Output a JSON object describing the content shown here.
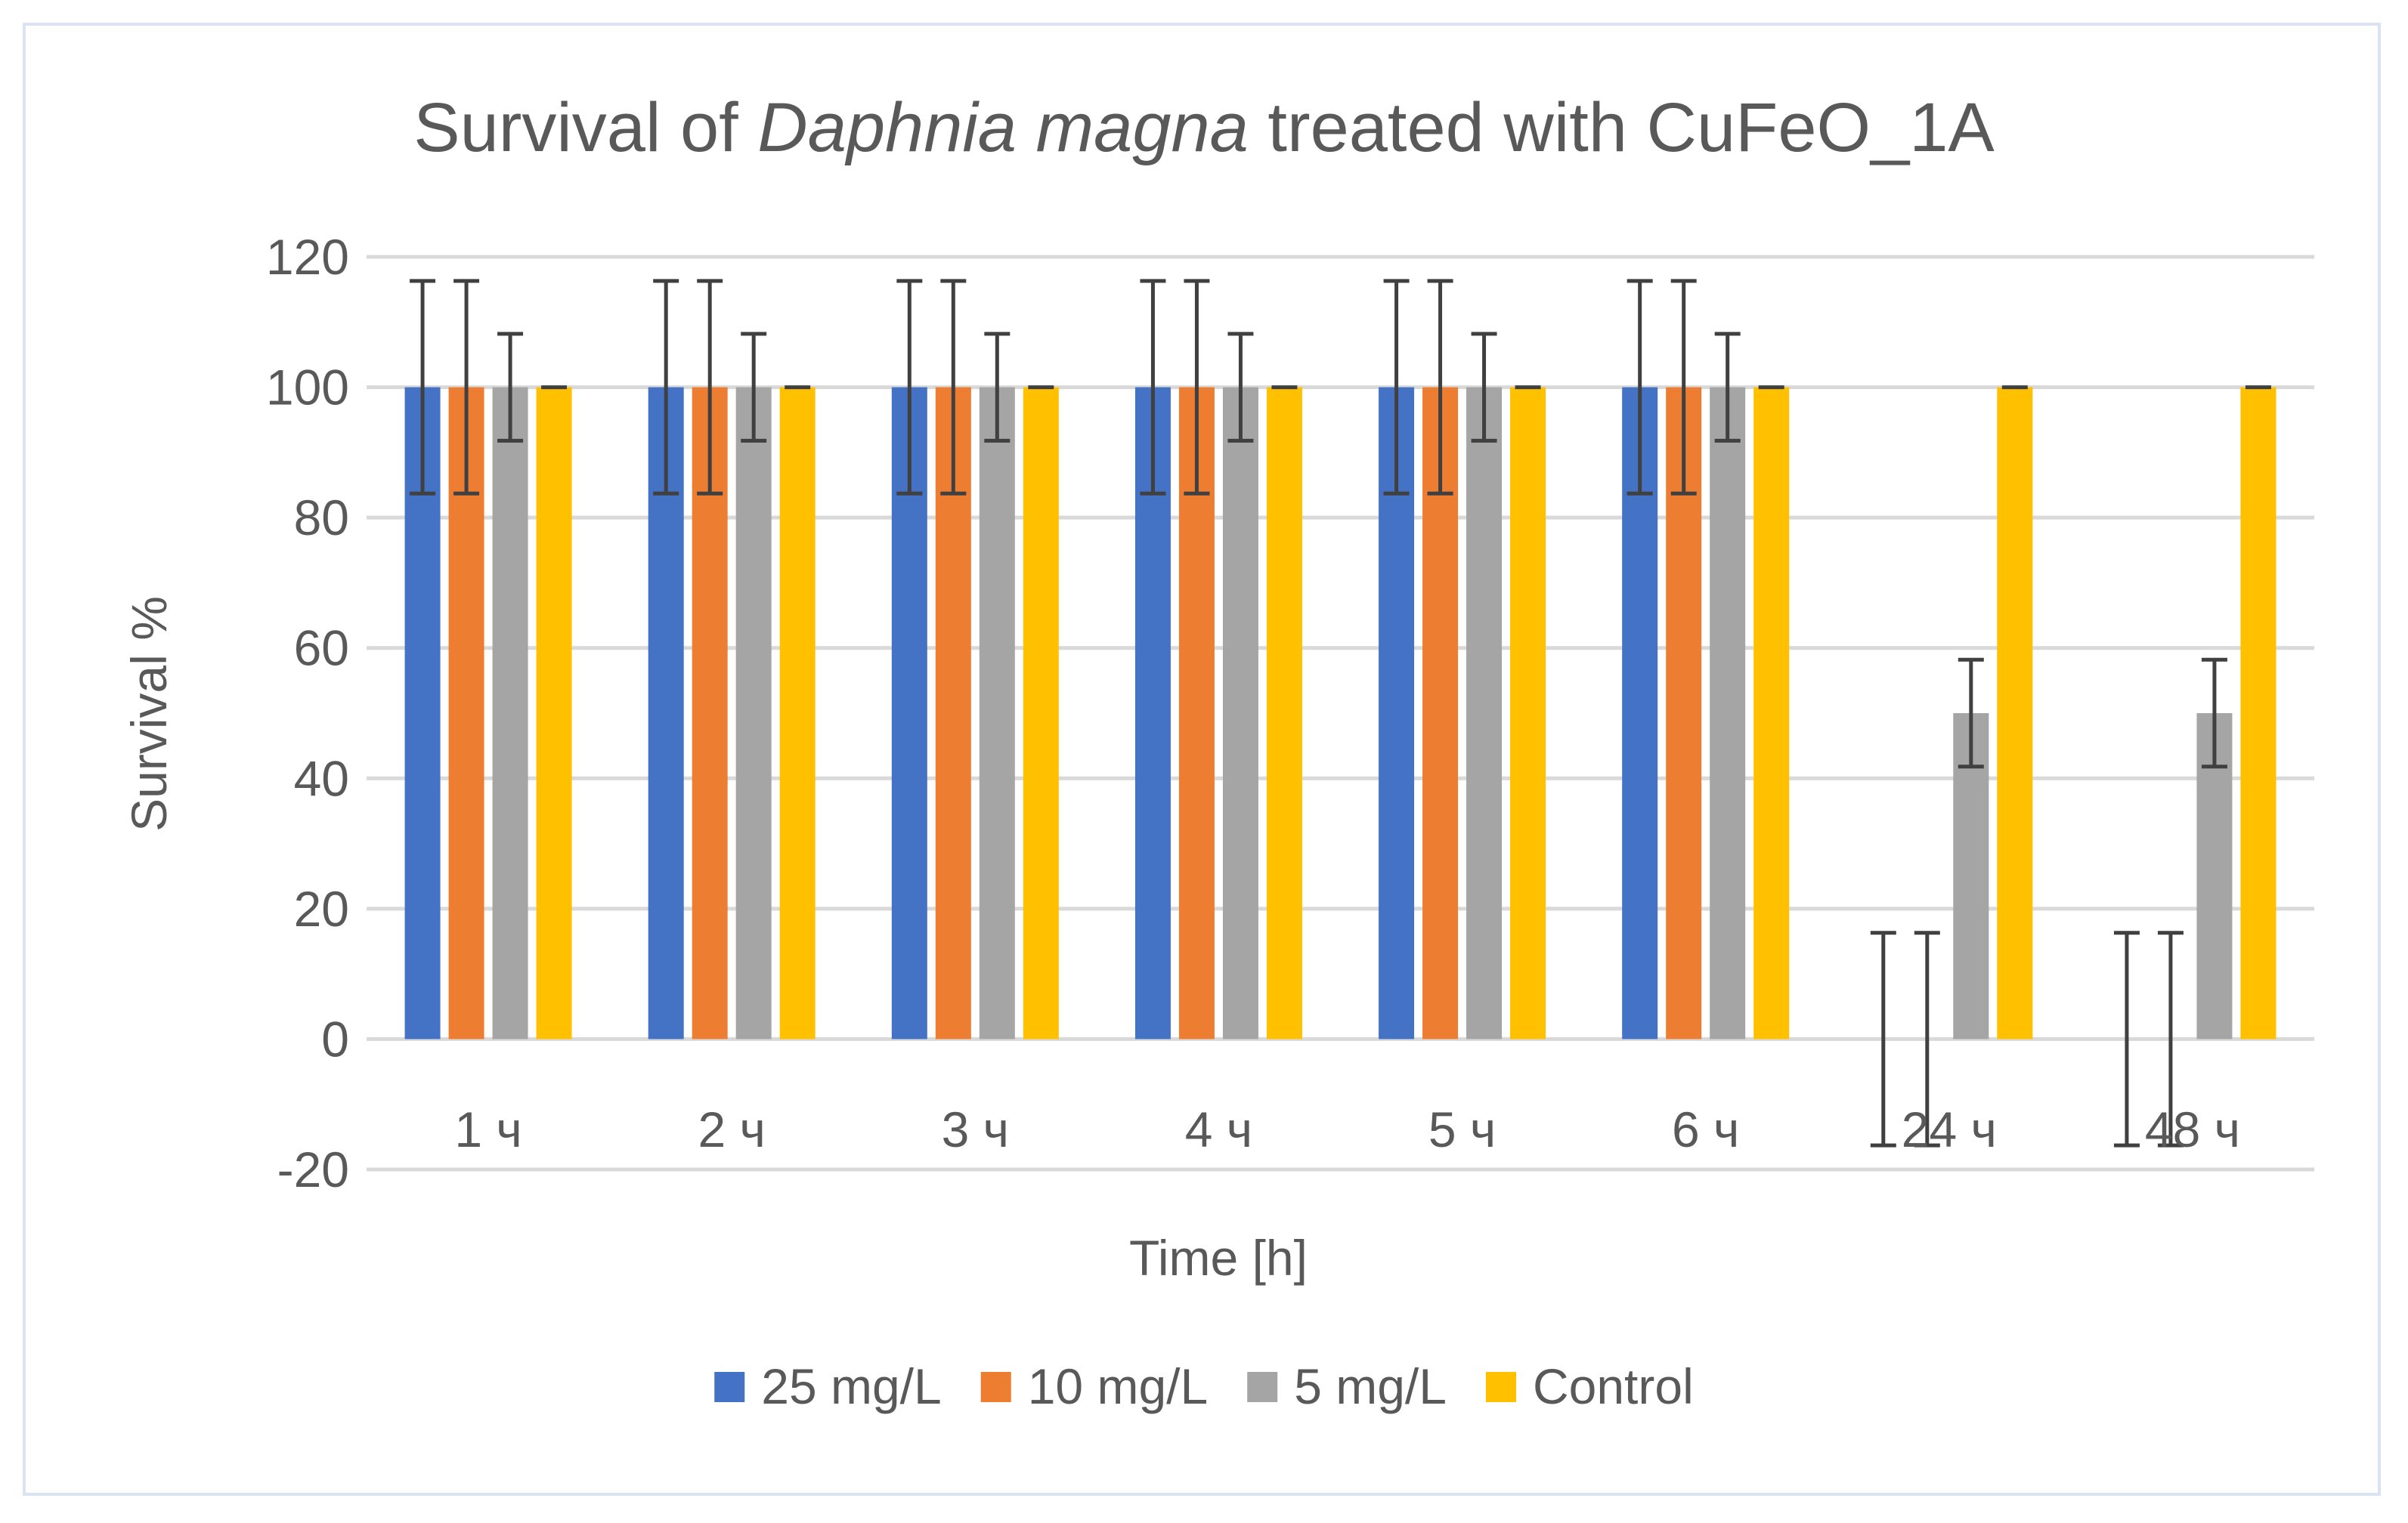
{
  "chart_data": {
    "type": "bar",
    "title_parts": {
      "before": "Survival of ",
      "species": "Daphnia magna",
      "after": " treated with CuFeO_1A"
    },
    "xlabel": "Time [h]",
    "ylabel": "Survival %",
    "ylim": [
      -20,
      120
    ],
    "yticks": [
      -20,
      0,
      20,
      40,
      60,
      80,
      100,
      120
    ],
    "grid": true,
    "legend_position": "bottom",
    "categories": [
      "1 ч",
      "2 ч",
      "3 ч",
      "4 ч",
      "5 ч",
      "6 ч",
      "24 ч",
      "48 ч"
    ],
    "series": [
      {
        "name": "25 mg/L",
        "color": "#4472c4",
        "values": [
          100,
          100,
          100,
          100,
          100,
          100,
          0,
          0
        ],
        "error": [
          16.3,
          16.3,
          16.3,
          16.3,
          16.3,
          16.3,
          16.3,
          16.3
        ]
      },
      {
        "name": "10 mg/L",
        "color": "#ed7d31",
        "values": [
          100,
          100,
          100,
          100,
          100,
          100,
          0,
          0
        ],
        "error": [
          16.3,
          16.3,
          16.3,
          16.3,
          16.3,
          16.3,
          16.3,
          16.3
        ]
      },
      {
        "name": "5 mg/L",
        "color": "#a5a5a5",
        "values": [
          100,
          100,
          100,
          100,
          100,
          100,
          50,
          50
        ],
        "error": [
          8.2,
          8.2,
          8.2,
          8.2,
          8.2,
          8.2,
          8.2,
          8.2
        ]
      },
      {
        "name": "Control",
        "color": "#ffc000",
        "values": [
          100,
          100,
          100,
          100,
          100,
          100,
          100,
          100
        ],
        "error": [
          0,
          0,
          0,
          0,
          0,
          0,
          0,
          0
        ]
      }
    ],
    "colors": {
      "gridline": "#d9d9d9",
      "error_bar": "#404040",
      "text": "#595959",
      "frame": "#dae3f3"
    }
  }
}
